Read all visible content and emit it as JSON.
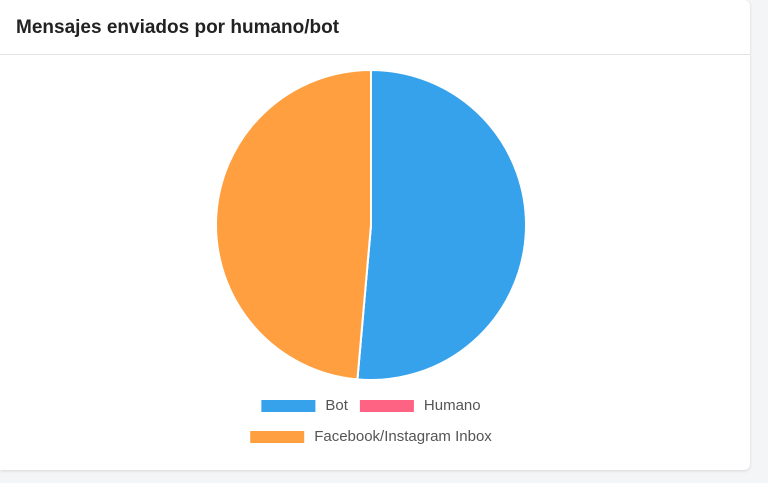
{
  "chart_data": {
    "type": "pie",
    "title": "Mensajes enviados por humano/bot",
    "categories": [
      "Bot",
      "Humano",
      "Facebook/Instagram Inbox"
    ],
    "values": [
      51.4,
      0,
      48.6
    ],
    "colors": [
      "#36a2eb",
      "#ff6384",
      "#ff9f40"
    ]
  }
}
